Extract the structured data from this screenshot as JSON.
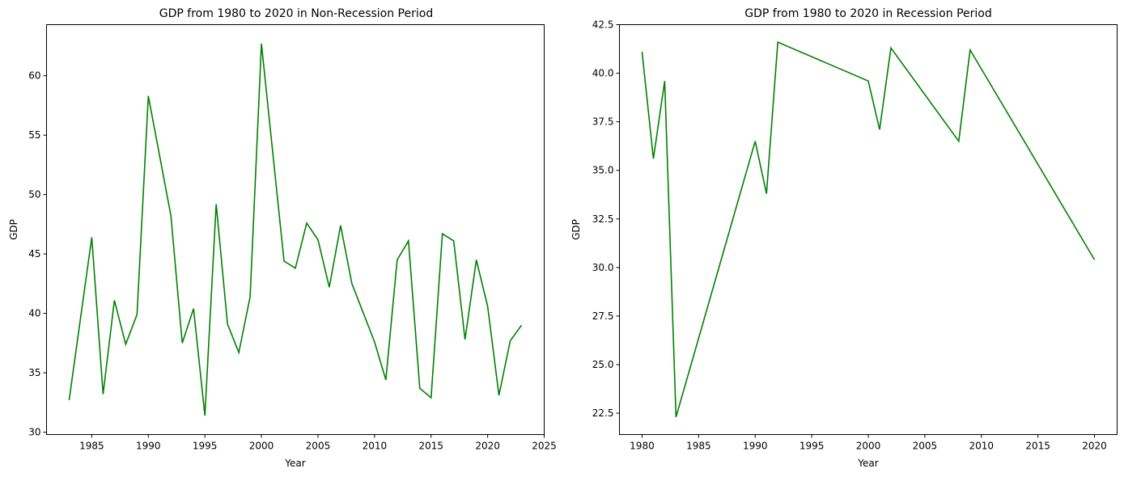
{
  "chart_data": [
    {
      "type": "line",
      "title": "GDP from 1980 to 2020 in Non-Recession Period",
      "xlabel": "Year",
      "ylabel": "GDP",
      "xlim": [
        1981.0,
        2025.0
      ],
      "ylim": [
        29.8,
        64.3
      ],
      "xticks": [
        1985,
        1990,
        1995,
        2000,
        2005,
        2010,
        2015,
        2020,
        2025
      ],
      "yticks": [
        30,
        35,
        40,
        45,
        50,
        55,
        60
      ],
      "tick_decimals": 0,
      "grid": false,
      "color": "#008000",
      "x": [
        1983,
        1985,
        1986,
        1987,
        1988,
        1989,
        1990,
        1992,
        1993,
        1994,
        1995,
        1996,
        1997,
        1998,
        1999,
        2000,
        2002,
        2003,
        2004,
        2005,
        2006,
        2007,
        2008,
        2010,
        2011,
        2012,
        2013,
        2014,
        2015,
        2016,
        2017,
        2018,
        2019,
        2020,
        2021,
        2022,
        2023
      ],
      "y": [
        32.7,
        46.4,
        33.2,
        41.1,
        37.4,
        39.9,
        58.3,
        48.2,
        37.5,
        40.4,
        31.4,
        49.2,
        39.1,
        36.7,
        41.4,
        62.7,
        44.4,
        43.8,
        47.6,
        46.2,
        42.2,
        47.4,
        42.5,
        37.6,
        34.4,
        44.5,
        46.1,
        33.7,
        32.9,
        46.7,
        46.1,
        37.8,
        44.5,
        40.6,
        33.1,
        37.7,
        39.0
      ]
    },
    {
      "type": "line",
      "title": "GDP from 1980 to 2020 in Recession Period",
      "xlabel": "Year",
      "ylabel": "GDP",
      "xlim": [
        1978.0,
        2022.0
      ],
      "ylim": [
        21.4,
        42.5
      ],
      "xticks": [
        1980,
        1985,
        1990,
        1995,
        2000,
        2005,
        2010,
        2015,
        2020
      ],
      "yticks": [
        22.5,
        25.0,
        27.5,
        30.0,
        32.5,
        35.0,
        37.5,
        40.0,
        42.5
      ],
      "tick_decimals": 1,
      "grid": false,
      "color": "#008000",
      "x": [
        1980,
        1981,
        1982,
        1983,
        1990,
        1991,
        1992,
        2000,
        2001,
        2002,
        2008,
        2009,
        2020
      ],
      "y": [
        41.1,
        35.6,
        39.6,
        22.3,
        36.5,
        33.8,
        41.6,
        39.6,
        37.1,
        41.3,
        36.5,
        41.2,
        30.4
      ]
    }
  ]
}
